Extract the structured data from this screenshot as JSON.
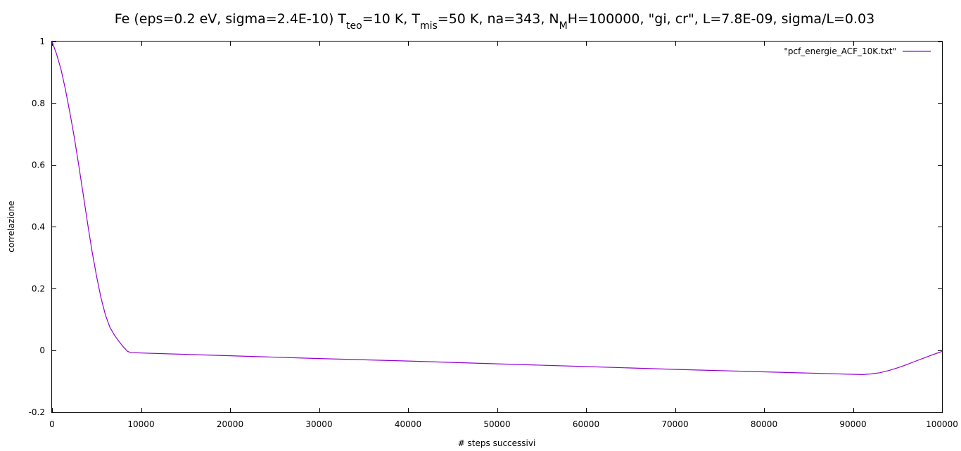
{
  "chart_data": {
    "type": "line",
    "title": {
      "parts": [
        {
          "text": "Fe (eps=0.2 eV, sigma=2.4E-10) T",
          "sub": false
        },
        {
          "text": "teo",
          "sub": true
        },
        {
          "text": "=10 K, T",
          "sub": false
        },
        {
          "text": "mis",
          "sub": true
        },
        {
          "text": "=50 K, na=343, N",
          "sub": false
        },
        {
          "text": "M",
          "sub": true
        },
        {
          "text": "H=100000, \"gi, cr\", L=7.8E-09, sigma/L=0.03",
          "sub": false
        }
      ]
    },
    "xlabel": "# steps successivi",
    "ylabel": "correlazione",
    "xlim": [
      0,
      100000
    ],
    "ylim": [
      -0.2,
      1
    ],
    "xticks": [
      0,
      10000,
      20000,
      30000,
      40000,
      50000,
      60000,
      70000,
      80000,
      90000,
      100000
    ],
    "xtick_labels": [
      "0",
      "10000",
      "20000",
      "30000",
      "40000",
      "50000",
      "60000",
      "70000",
      "80000",
      "90000",
      "100000"
    ],
    "yticks": [
      -0.2,
      0,
      0.2,
      0.4,
      0.6,
      0.8,
      1
    ],
    "ytick_labels": [
      "-0.2",
      "0",
      "0.2",
      "0.4",
      "0.6",
      "0.8",
      "1"
    ],
    "grid": false,
    "legend_position": "top-right",
    "series": [
      {
        "name": "\"pcf_energie_ACF_10K.txt\"",
        "color": "#9400d3",
        "x": [
          0,
          500,
          1000,
          1500,
          2000,
          2500,
          3000,
          3500,
          4000,
          4500,
          5000,
          5500,
          6000,
          6500,
          7000,
          7500,
          8000,
          8500,
          8800,
          9000,
          10000,
          20000,
          30000,
          40000,
          50000,
          60000,
          70000,
          80000,
          90000,
          91000,
          92000,
          93000,
          94000,
          95000,
          96000,
          97000,
          98000,
          99000,
          100000
        ],
        "y": [
          1.0,
          0.96,
          0.91,
          0.845,
          0.77,
          0.69,
          0.6,
          0.505,
          0.41,
          0.32,
          0.24,
          0.17,
          0.115,
          0.075,
          0.05,
          0.03,
          0.012,
          -0.003,
          -0.006,
          -0.007,
          -0.008,
          -0.017,
          -0.026,
          -0.034,
          -0.043,
          -0.052,
          -0.061,
          -0.069,
          -0.077,
          -0.078,
          -0.076,
          -0.072,
          -0.065,
          -0.056,
          -0.046,
          -0.035,
          -0.024,
          -0.013,
          -0.003
        ]
      }
    ]
  }
}
